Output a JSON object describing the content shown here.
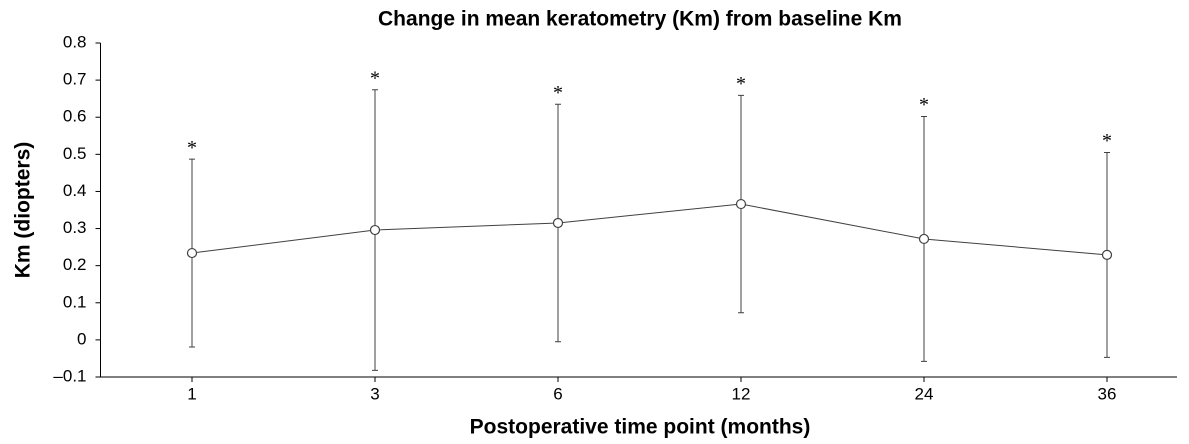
{
  "chart_data": {
    "type": "line",
    "title": "Change in mean keratometry (Km) from baseline Km",
    "x_label": "Postoperative time point (months)",
    "y_label": "Km (diopters)",
    "categories": [
      "1",
      "3",
      "6",
      "12",
      "24",
      "36"
    ],
    "series": [
      {
        "name": "Km",
        "color": "#404040",
        "values": [
          0.234,
          0.296,
          0.315,
          0.366,
          0.272,
          0.229
        ],
        "errors": [
          0.253,
          0.378,
          0.32,
          0.293,
          0.33,
          0.276
        ]
      }
    ],
    "annotations": [
      "*",
      "*",
      "*",
      "*",
      "*",
      "*"
    ],
    "ylim": [
      -0.1,
      0.8
    ],
    "yticks": [
      {
        "value": -0.1,
        "label": "–0.1"
      },
      0,
      0.1,
      0.2,
      0.3,
      0.4,
      0.5,
      0.6,
      0.7,
      0.8
    ],
    "grid": false
  }
}
